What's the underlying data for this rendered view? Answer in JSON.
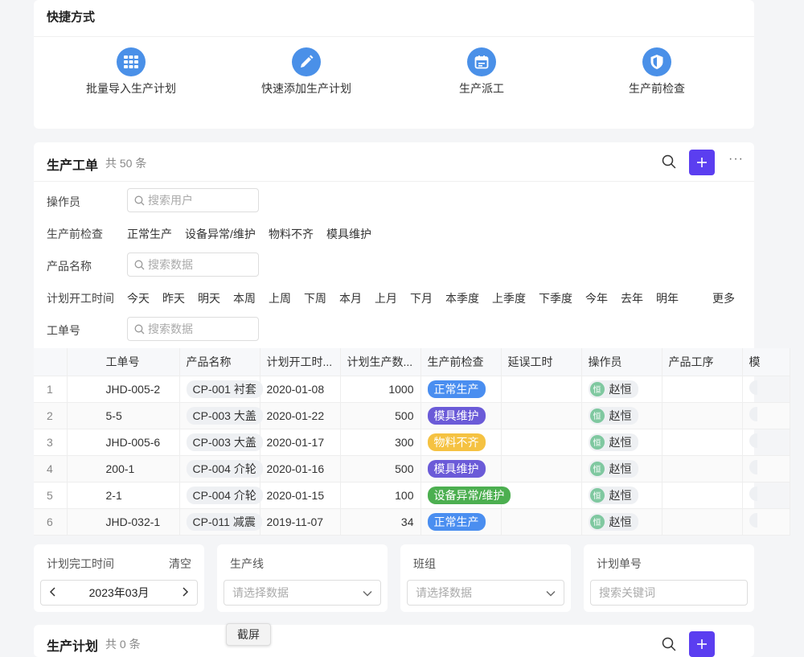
{
  "shortcuts": {
    "title": "快捷方式",
    "items": [
      {
        "label": "批量导入生产计划",
        "icon": "grid-icon"
      },
      {
        "label": "快速添加生产计划",
        "icon": "pencil-icon"
      },
      {
        "label": "生产派工",
        "icon": "calendar-icon"
      },
      {
        "label": "生产前检查",
        "icon": "shield-icon"
      }
    ]
  },
  "work_orders": {
    "title": "生产工单",
    "count": "共 50 条",
    "filters": {
      "operator": {
        "label": "操作员",
        "placeholder": "搜索用户"
      },
      "precheck": {
        "label": "生产前检查",
        "options": [
          "正常生产",
          "设备异常/维护",
          "物料不齐",
          "模具维护"
        ]
      },
      "product_name": {
        "label": "产品名称",
        "placeholder": "搜索数据"
      },
      "plan_start": {
        "label": "计划开工时间",
        "options": [
          "今天",
          "昨天",
          "明天",
          "本周",
          "上周",
          "下周",
          "本月",
          "上月",
          "下月",
          "本季度",
          "上季度",
          "下季度",
          "今年",
          "去年",
          "明年"
        ],
        "more": "更多"
      },
      "order_no": {
        "label": "工单号",
        "placeholder": "搜索数据"
      }
    },
    "columns": [
      "工单号",
      "产品名称",
      "计划开工时...",
      "计划生产数...",
      "生产前检查",
      "延误工时",
      "操作员",
      "产品工序",
      "模"
    ],
    "rows": [
      {
        "idx": "1",
        "order_no": "JHD-005-2",
        "product": "CP-001 衬套",
        "start": "2020-01-08",
        "qty": "1000",
        "check": "正常生产",
        "check_color": "#4a8ef0",
        "delay": "",
        "operator": "赵恒",
        "avatar": "恒"
      },
      {
        "idx": "2",
        "order_no": "5-5",
        "product": "CP-003 大盖",
        "start": "2020-01-22",
        "qty": "500",
        "check": "模具维护",
        "check_color": "#6b5bd8",
        "delay": "",
        "operator": "赵恒",
        "avatar": "恒"
      },
      {
        "idx": "3",
        "order_no": "JHD-005-6",
        "product": "CP-003 大盖",
        "start": "2020-01-17",
        "qty": "300",
        "check": "物料不齐",
        "check_color": "#f5c242",
        "delay": "",
        "operator": "赵恒",
        "avatar": "恒"
      },
      {
        "idx": "4",
        "order_no": "200-1",
        "product": "CP-004 介轮",
        "start": "2020-01-16",
        "qty": "500",
        "check": "模具维护",
        "check_color": "#6b5bd8",
        "delay": "",
        "operator": "赵恒",
        "avatar": "恒"
      },
      {
        "idx": "5",
        "order_no": "2-1",
        "product": "CP-004 介轮",
        "start": "2020-01-15",
        "qty": "100",
        "check": "设备异常/维护",
        "check_color": "#4caf50",
        "delay": "",
        "operator": "赵恒",
        "avatar": "恒"
      },
      {
        "idx": "6",
        "order_no": "JHD-032-1",
        "product": "CP-011 减震",
        "start": "2019-11-07",
        "qty": "34",
        "check": "正常生产",
        "check_color": "#4a8ef0",
        "delay": "",
        "operator": "赵恒",
        "avatar": "恒"
      }
    ]
  },
  "bottom_filters": {
    "plan_end": {
      "label": "计划完工时间",
      "clear": "清空",
      "month": "2023年03月"
    },
    "line": {
      "label": "生产线",
      "placeholder": "请选择数据"
    },
    "team": {
      "label": "班组",
      "placeholder": "请选择数据"
    },
    "plan_no": {
      "label": "计划单号",
      "placeholder": "搜索关键词"
    }
  },
  "plan": {
    "title": "生产计划",
    "count": "共 0 条"
  },
  "screenshot_button": "截屏"
}
